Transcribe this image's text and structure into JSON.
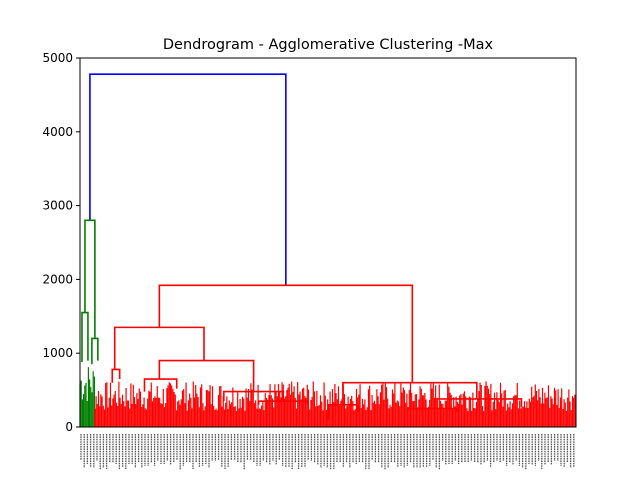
{
  "chart_data": {
    "type": "dendrogram",
    "title": "Dendrogram - Agglomerative Clustering -Max",
    "xlabel": "",
    "ylabel": "",
    "xlim": [
      0,
      100
    ],
    "ylim": [
      0,
      5000
    ],
    "y_ticks": [
      0,
      1000,
      2000,
      3000,
      4000,
      5000
    ],
    "y_tick_labels": [
      "0",
      "1000",
      "2000",
      "3000",
      "4000",
      "5000"
    ],
    "grid": false,
    "legend": "none",
    "colors": {
      "root": "#0000ff",
      "cluster_1": "#008000",
      "cluster_2": "#ff0000",
      "axis": "#000000"
    },
    "merges": [
      {
        "x_left": 2,
        "x_right": 41.5,
        "height": 4780,
        "color": "#0000ff",
        "left_bottom": 2800,
        "right_bottom": 1920
      },
      {
        "x_left": 1,
        "x_right": 3,
        "height": 2800,
        "color": "#008000",
        "left_bottom": 1550,
        "right_bottom": 1200
      },
      {
        "x_left": 0.4,
        "x_right": 1.6,
        "height": 1550,
        "color": "#008000",
        "left_bottom": 880,
        "right_bottom": 900
      },
      {
        "x_left": 2.4,
        "x_right": 3.6,
        "height": 1200,
        "color": "#008000",
        "left_bottom": 850,
        "right_bottom": 900
      },
      {
        "x_left": 16,
        "x_right": 67,
        "height": 1920,
        "color": "#ff0000",
        "left_bottom": 1350,
        "right_bottom": 600
      },
      {
        "x_left": 7,
        "x_right": 25,
        "height": 1350,
        "color": "#ff0000",
        "left_bottom": 780,
        "right_bottom": 900
      },
      {
        "x_left": 6.5,
        "x_right": 8,
        "height": 780,
        "color": "#ff0000",
        "left_bottom": 600,
        "right_bottom": 650
      },
      {
        "x_left": 16,
        "x_right": 35,
        "height": 900,
        "color": "#ff0000",
        "left_bottom": 650,
        "right_bottom": 480
      },
      {
        "x_left": 13,
        "x_right": 19.5,
        "height": 650,
        "color": "#ff0000",
        "left_bottom": 480,
        "right_bottom": 520
      },
      {
        "x_left": 29,
        "x_right": 41,
        "height": 480,
        "color": "#ff0000",
        "left_bottom": 350,
        "right_bottom": 350
      },
      {
        "x_left": 36,
        "x_right": 46,
        "height": 350,
        "color": "#ff0000",
        "left_bottom": 300,
        "right_bottom": 300
      },
      {
        "x_left": 53,
        "x_right": 80,
        "height": 600,
        "color": "#ff0000",
        "left_bottom": 300,
        "right_bottom": 380
      },
      {
        "x_left": 50,
        "x_right": 56,
        "height": 300,
        "color": "#ff0000",
        "left_bottom": 100,
        "right_bottom": 200
      },
      {
        "x_left": 72,
        "x_right": 89,
        "height": 380,
        "color": "#ff0000",
        "left_bottom": 250,
        "right_bottom": 270
      },
      {
        "x_left": 66,
        "x_right": 76,
        "height": 250,
        "color": "#ff0000",
        "left_bottom": 200,
        "right_bottom": 200
      }
    ],
    "clusters": [
      {
        "x_start": 0,
        "x_end": 3,
        "top": 880,
        "color": "#008000"
      },
      {
        "x_start": 3,
        "x_end": 100,
        "top": 620,
        "color": "#ff0000"
      }
    ]
  }
}
